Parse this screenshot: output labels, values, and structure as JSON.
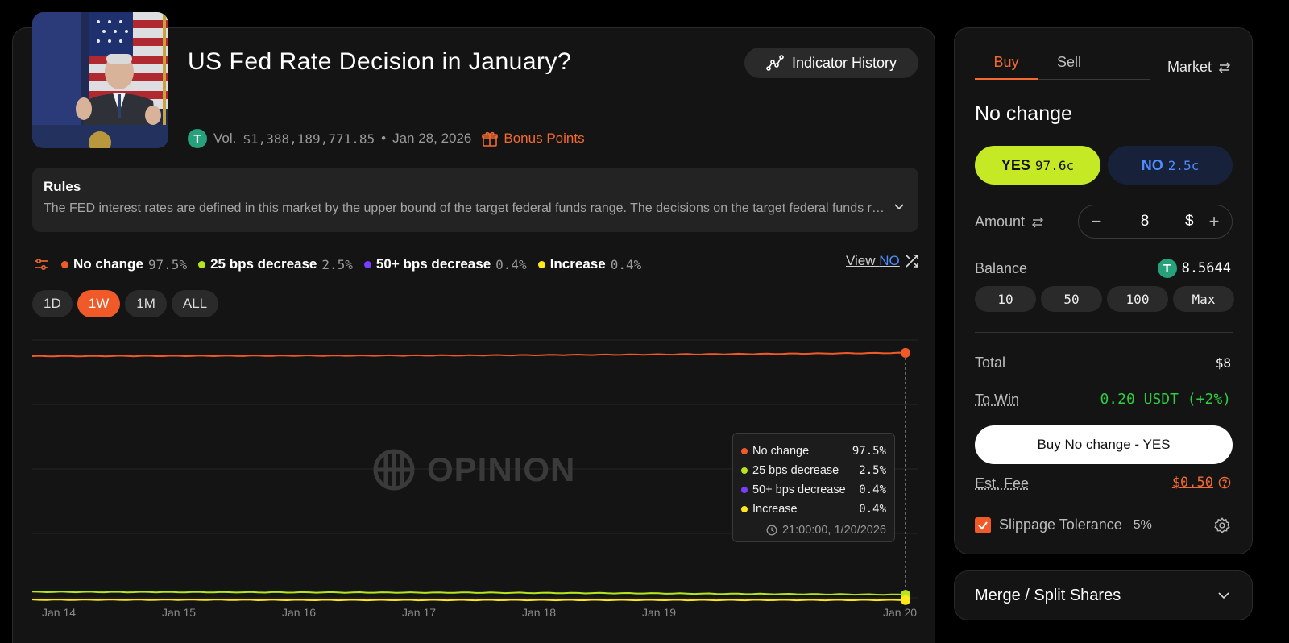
{
  "market": {
    "title": "US Fed Rate Decision in January?",
    "indicator_history_label": "Indicator History",
    "volume_label": "Vol.",
    "volume_value": "$1,388,189,771.85",
    "separator": "•",
    "date": "Jan 28, 2026",
    "bonus_label": "Bonus Points",
    "token_symbol": "T"
  },
  "rules": {
    "title": "Rules",
    "text": "The FED interest rates are defined in this market by the upper bound of the target federal funds range. The decisions on the target federal funds range are made by the Federal Open Market Committee."
  },
  "legend": {
    "items": [
      {
        "label": "No change",
        "value": "97.5%",
        "color": "#f05a28"
      },
      {
        "label": "25 bps decrease",
        "value": "2.5%",
        "color": "#b5e61d"
      },
      {
        "label": "50+ bps decrease",
        "value": "0.4%",
        "color": "#7a3cff"
      },
      {
        "label": "Increase",
        "value": "0.4%",
        "color": "#ffe81a"
      }
    ],
    "view_label": "View",
    "view_no": "NO"
  },
  "ranges": [
    "1D",
    "1W",
    "1M",
    "ALL"
  ],
  "active_range": "1W",
  "watermark": "OPINION",
  "tooltip": {
    "rows": [
      {
        "label": "No change",
        "value": "97.5%",
        "color": "#f05a28"
      },
      {
        "label": "25 bps decrease",
        "value": "2.5%",
        "color": "#b5e61d"
      },
      {
        "label": "50+ bps decrease",
        "value": "0.4%",
        "color": "#7a3cff"
      },
      {
        "label": "Increase",
        "value": "0.4%",
        "color": "#ffe81a"
      }
    ],
    "time": "21:00:00, 1/20/2026"
  },
  "chart_data": {
    "type": "line",
    "x": [
      "Jan 14",
      "Jan 15",
      "Jan 16",
      "Jan 17",
      "Jan 18",
      "Jan 19",
      "Jan 20"
    ],
    "ylim": [
      0,
      100
    ],
    "grid": true,
    "series": [
      {
        "name": "No change",
        "color": "#f05a28",
        "values": [
          96.2,
          96.3,
          96.4,
          96.5,
          96.8,
          97.1,
          97.5
        ]
      },
      {
        "name": "25 bps decrease",
        "color": "#b5e61d",
        "values": [
          3.6,
          3.5,
          3.4,
          3.3,
          3.1,
          2.8,
          2.5
        ]
      },
      {
        "name": "Increase",
        "color": "#ffe81a",
        "values": [
          0.5,
          0.5,
          0.4,
          0.4,
          0.4,
          0.4,
          0.4
        ]
      }
    ]
  },
  "trade": {
    "tab_buy": "Buy",
    "tab_sell": "Sell",
    "order_type": "Market",
    "outcome": "No change",
    "yes_label": "YES",
    "yes_price": "97.6¢",
    "no_label": "NO",
    "no_price": "2.5¢",
    "amount_label": "Amount",
    "amount_value": "8",
    "currency": "$",
    "balance_label": "Balance",
    "balance_value": "8.5644",
    "quick_amounts": [
      "10",
      "50",
      "100",
      "Max"
    ],
    "total_label": "Total",
    "total_value": "$8",
    "to_win_label": "To Win",
    "to_win_value": "0.20 USDT (+2%)",
    "buy_button": "Buy No change - YES",
    "fee_label": "Est. Fee",
    "fee_value": "$0.50",
    "slippage_label": "Slippage Tolerance",
    "slippage_value": "5%"
  },
  "merge": {
    "label": "Merge / Split Shares"
  }
}
